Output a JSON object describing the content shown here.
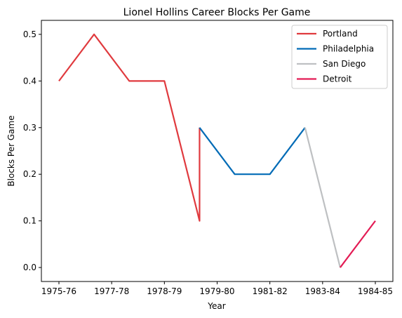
{
  "chart_data": {
    "type": "line",
    "title": "Lionel Hollins Career Blocks Per Game",
    "xlabel": "Year",
    "ylabel": "Blocks Per Game",
    "x_ticks": [
      "1975-76",
      "1977-78",
      "1978-79",
      "1979-80",
      "1981-82",
      "1983-84",
      "1984-85"
    ],
    "x_tick_index": [
      0,
      1,
      2,
      3,
      4,
      5,
      6
    ],
    "y_ticks": [
      "0.0",
      "0.1",
      "0.2",
      "0.3",
      "0.4",
      "0.5"
    ],
    "ylim": [
      -0.03,
      0.53
    ],
    "legend_position": "upper-right",
    "grid": false,
    "series": [
      {
        "name": "Portland",
        "color": "#E03A3E",
        "points": [
          {
            "x": "1975-76",
            "y": 0.4
          },
          {
            "x": "1976-77",
            "y": 0.5
          },
          {
            "x": "1977-78",
            "y": 0.4
          },
          {
            "x": "1978-79",
            "y": 0.4
          },
          {
            "x": "1979-80",
            "y": 0.1
          },
          {
            "x": "1979-80",
            "y": 0.3
          }
        ]
      },
      {
        "name": "Philadelphia",
        "color": "#006BB6",
        "points": [
          {
            "x": "1979-80",
            "y": 0.3
          },
          {
            "x": "1980-81",
            "y": 0.2
          },
          {
            "x": "1981-82",
            "y": 0.2
          },
          {
            "x": "1982-83",
            "y": 0.3
          }
        ]
      },
      {
        "name": "San Diego",
        "color": "#BEC0C2",
        "points": [
          {
            "x": "1982-83",
            "y": 0.3
          },
          {
            "x": "1983-84",
            "y": 0.0
          }
        ]
      },
      {
        "name": "Detroit",
        "color": "#E31B54",
        "points": [
          {
            "x": "1983-84",
            "y": 0.0
          },
          {
            "x": "1984-85",
            "y": 0.1
          }
        ]
      }
    ]
  }
}
